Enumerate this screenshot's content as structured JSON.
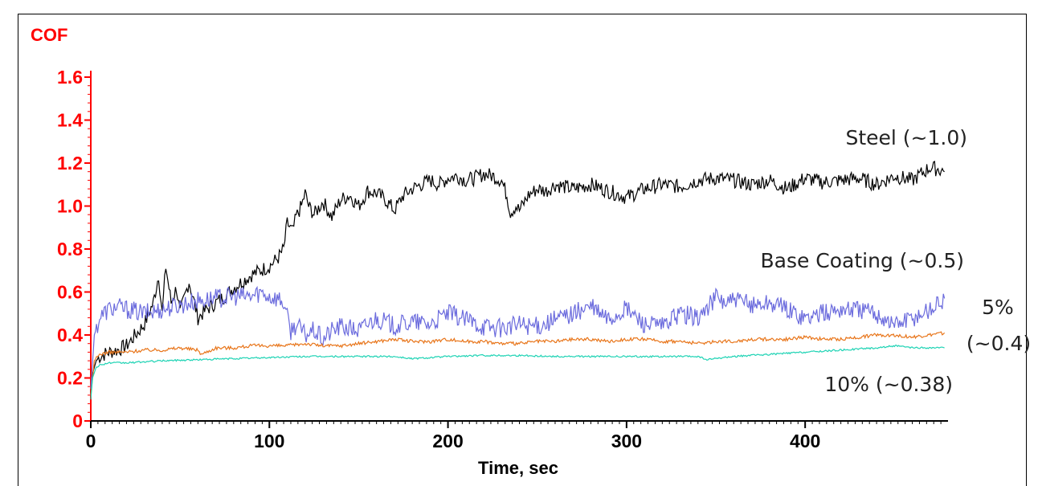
{
  "chart_data": {
    "type": "line",
    "ylabel": "COF",
    "xlabel": "Time, sec",
    "xlim": [
      0,
      480
    ],
    "ylim": [
      0,
      1.6
    ],
    "x_ticks": [
      "0",
      "100",
      "200",
      "300",
      "400"
    ],
    "y_ticks": [
      "0",
      "0.2",
      "0.4",
      "0.6",
      "0.8",
      "1.0",
      "1.2",
      "1.4",
      "1.6"
    ],
    "grid": false,
    "colors": {
      "axis_y": "#ff0000",
      "axis_x": "#000000",
      "steel": "#000000",
      "base": "#6b6bdd",
      "five": "#e8751a",
      "ten": "#1ed3b4"
    },
    "series": [
      {
        "key": "steel",
        "x": [
          0,
          1,
          3,
          5,
          10,
          15,
          20,
          25,
          30,
          35,
          38,
          40,
          42,
          45,
          48,
          50,
          55,
          60,
          65,
          70,
          75,
          80,
          85,
          90,
          95,
          100,
          105,
          108,
          110,
          113,
          115,
          118,
          120,
          122,
          125,
          130,
          135,
          140,
          145,
          150,
          155,
          160,
          165,
          170,
          175,
          180,
          185,
          190,
          195,
          200,
          205,
          210,
          215,
          220,
          225,
          230,
          233,
          235,
          238,
          240,
          245,
          250,
          255,
          260,
          270,
          280,
          290,
          300,
          310,
          320,
          330,
          340,
          350,
          360,
          370,
          380,
          390,
          400,
          410,
          420,
          430,
          440,
          450,
          460,
          465,
          470,
          475,
          478
        ],
        "values": [
          0.12,
          0.22,
          0.28,
          0.3,
          0.32,
          0.33,
          0.35,
          0.4,
          0.45,
          0.55,
          0.68,
          0.5,
          0.72,
          0.55,
          0.62,
          0.5,
          0.65,
          0.48,
          0.52,
          0.55,
          0.58,
          0.62,
          0.65,
          0.68,
          0.7,
          0.72,
          0.76,
          0.8,
          0.92,
          0.88,
          0.95,
          1.0,
          1.06,
          1.0,
          0.96,
          1.02,
          0.95,
          1.03,
          1.05,
          1.0,
          1.07,
          1.06,
          1.03,
          0.98,
          1.05,
          1.08,
          1.1,
          1.12,
          1.1,
          1.13,
          1.14,
          1.12,
          1.13,
          1.15,
          1.14,
          1.12,
          1.05,
          0.97,
          1.0,
          0.98,
          1.05,
          1.08,
          1.07,
          1.1,
          1.08,
          1.1,
          1.07,
          1.04,
          1.08,
          1.1,
          1.09,
          1.12,
          1.13,
          1.12,
          1.1,
          1.12,
          1.08,
          1.13,
          1.11,
          1.12,
          1.13,
          1.1,
          1.14,
          1.12,
          1.15,
          1.18,
          1.17,
          1.16
        ]
      },
      {
        "key": "base",
        "x": [
          0,
          2,
          5,
          10,
          15,
          20,
          30,
          40,
          50,
          60,
          70,
          80,
          90,
          95,
          100,
          105,
          108,
          110,
          112,
          115,
          120,
          125,
          130,
          135,
          140,
          150,
          160,
          170,
          180,
          190,
          200,
          210,
          220,
          230,
          240,
          250,
          260,
          270,
          280,
          290,
          300,
          310,
          320,
          330,
          340,
          345,
          350,
          355,
          360,
          370,
          380,
          390,
          400,
          410,
          420,
          430,
          440,
          450,
          460,
          470,
          478
        ],
        "values": [
          0.15,
          0.4,
          0.48,
          0.52,
          0.53,
          0.52,
          0.5,
          0.52,
          0.54,
          0.56,
          0.57,
          0.58,
          0.58,
          0.6,
          0.58,
          0.57,
          0.55,
          0.48,
          0.42,
          0.45,
          0.4,
          0.42,
          0.38,
          0.42,
          0.44,
          0.42,
          0.48,
          0.44,
          0.46,
          0.45,
          0.5,
          0.47,
          0.44,
          0.43,
          0.45,
          0.44,
          0.47,
          0.5,
          0.53,
          0.47,
          0.52,
          0.45,
          0.44,
          0.5,
          0.48,
          0.52,
          0.58,
          0.55,
          0.56,
          0.54,
          0.55,
          0.52,
          0.48,
          0.5,
          0.52,
          0.52,
          0.5,
          0.45,
          0.48,
          0.52,
          0.57
        ]
      },
      {
        "key": "five",
        "x": [
          0,
          2,
          5,
          10,
          20,
          30,
          40,
          50,
          60,
          62,
          70,
          80,
          90,
          100,
          110,
          120,
          130,
          140,
          150,
          160,
          170,
          180,
          190,
          200,
          210,
          220,
          230,
          240,
          250,
          260,
          270,
          280,
          290,
          300,
          310,
          320,
          330,
          340,
          350,
          360,
          370,
          380,
          390,
          400,
          410,
          420,
          430,
          440,
          450,
          460,
          470,
          478
        ],
        "values": [
          0.12,
          0.28,
          0.31,
          0.32,
          0.32,
          0.33,
          0.33,
          0.34,
          0.33,
          0.31,
          0.34,
          0.34,
          0.35,
          0.35,
          0.35,
          0.36,
          0.35,
          0.35,
          0.36,
          0.37,
          0.38,
          0.37,
          0.37,
          0.38,
          0.37,
          0.37,
          0.36,
          0.36,
          0.37,
          0.37,
          0.38,
          0.38,
          0.37,
          0.38,
          0.38,
          0.37,
          0.37,
          0.36,
          0.37,
          0.37,
          0.38,
          0.38,
          0.38,
          0.39,
          0.38,
          0.38,
          0.39,
          0.4,
          0.4,
          0.39,
          0.4,
          0.41
        ]
      },
      {
        "key": "ten",
        "x": [
          0,
          1,
          3,
          5,
          10,
          20,
          40,
          60,
          80,
          100,
          120,
          140,
          160,
          170,
          180,
          200,
          220,
          240,
          260,
          280,
          300,
          320,
          340,
          345,
          350,
          360,
          380,
          400,
          420,
          440,
          450,
          460,
          478
        ],
        "values": [
          0.1,
          0.2,
          0.25,
          0.26,
          0.27,
          0.27,
          0.28,
          0.285,
          0.29,
          0.295,
          0.3,
          0.3,
          0.3,
          0.3,
          0.29,
          0.3,
          0.305,
          0.305,
          0.3,
          0.3,
          0.3,
          0.3,
          0.3,
          0.285,
          0.29,
          0.3,
          0.31,
          0.32,
          0.33,
          0.34,
          0.35,
          0.34,
          0.34
        ]
      }
    ],
    "annotations": [
      {
        "key": "steel",
        "text": "Steel (~1.0)"
      },
      {
        "key": "base",
        "text": "Base Coating (~0.5)"
      },
      {
        "key": "five",
        "text": "5%",
        "text2": "(~0.4)"
      },
      {
        "key": "ten",
        "text": "10% (~0.38)"
      }
    ]
  }
}
